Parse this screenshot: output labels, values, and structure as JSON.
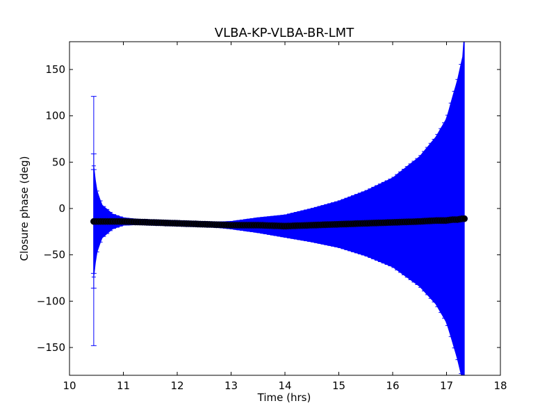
{
  "chart_data": {
    "type": "scatter",
    "title": "VLBA-KP-VLBA-BR-LMT",
    "xlabel": "Time (hrs)",
    "ylabel": "Closure phase (deg)",
    "xlim": [
      10,
      18
    ],
    "ylim": [
      -180,
      180
    ],
    "xticks": [
      10,
      11,
      12,
      13,
      14,
      15,
      16,
      17,
      18
    ],
    "yticks": [
      -150,
      -100,
      -50,
      0,
      50,
      100,
      150
    ],
    "xtick_labels": [
      "10",
      "11",
      "12",
      "13",
      "14",
      "15",
      "16",
      "17",
      "18"
    ],
    "ytick_labels": [
      "−150",
      "−100",
      "−50",
      "0",
      "50",
      "100",
      "150"
    ],
    "grid": false,
    "legend": "none",
    "series": [
      {
        "marker_color": "#000000",
        "errorbar_color": "#0000ff",
        "x": [
          10.45,
          10.5,
          10.6,
          10.8,
          11.0,
          11.5,
          12.0,
          12.5,
          13.0,
          13.5,
          14.0,
          14.5,
          15.0,
          15.5,
          16.0,
          16.5,
          16.8,
          17.0,
          17.1,
          17.2,
          17.3,
          17.33
        ],
        "y": [
          -14,
          -14,
          -14,
          -14,
          -14,
          -15,
          -16,
          -17,
          -18,
          -18,
          -19,
          -18,
          -17,
          -16,
          -15,
          -14,
          -13,
          -13,
          -12,
          -12,
          -11,
          -11
        ],
        "yerr": [
          60,
          35,
          18,
          8,
          4,
          2,
          1.5,
          2,
          4,
          8,
          12,
          18,
          25,
          35,
          48,
          70,
          90,
          110,
          130,
          150,
          175,
          200
        ],
        "outlier_errorbars": [
          {
            "x": 10.45,
            "low": -148,
            "high": 121
          },
          {
            "x": 10.45,
            "low": -86,
            "high": 59
          },
          {
            "x": 10.45,
            "low": -70,
            "high": 42
          }
        ]
      }
    ]
  }
}
